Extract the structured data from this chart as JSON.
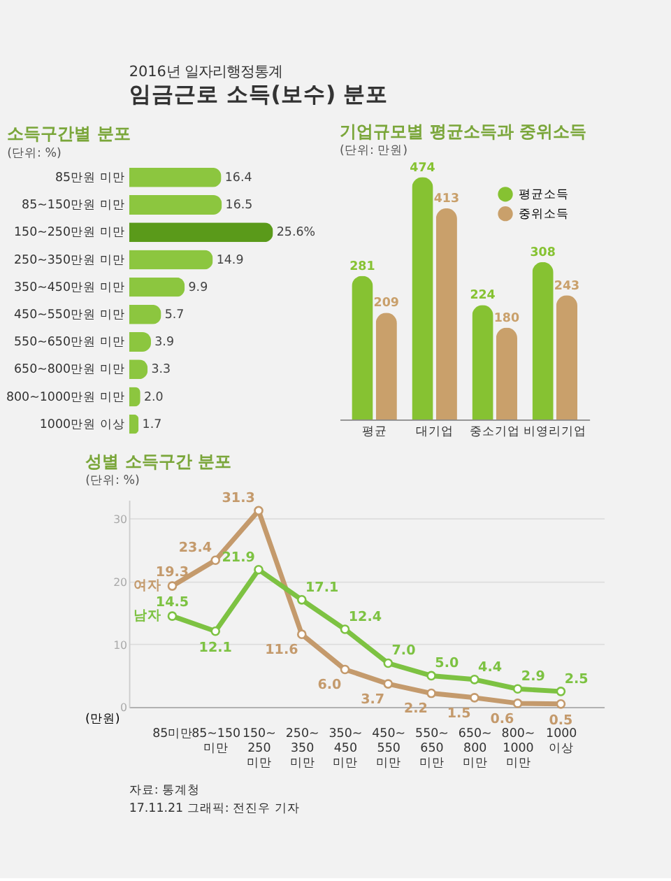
{
  "chart_data": [
    {
      "type": "bar",
      "orientation": "horizontal",
      "title": "소득구간별 분포",
      "subtitle": "(단위: %)",
      "annotations": [
        "2016년 일자리행정통계",
        "임금근로 소득(보수) 분포"
      ],
      "categories": [
        "85만원 미만",
        "85~150만원 미만",
        "150~250만원 미만",
        "250~350만원 미만",
        "350~450만원 미만",
        "450~550만원 미만",
        "550~650만원 미만",
        "650~800만원 미만",
        "800~1000만원 미만",
        "1000만원 이상"
      ],
      "values": [
        16.4,
        16.5,
        25.6,
        14.9,
        9.9,
        5.7,
        3.9,
        3.3,
        2.0,
        1.7
      ],
      "value_labels": [
        "16.4",
        "16.5",
        "25.6%",
        "14.9",
        "9.9",
        "5.7",
        "3.9",
        "3.3",
        "2.0",
        "1.7"
      ],
      "colors": [
        "#8cc63f",
        "#8cc63f",
        "#5a9a1a",
        "#8cc63f",
        "#8cc63f",
        "#8cc63f",
        "#8cc63f",
        "#8cc63f",
        "#8cc63f",
        "#8cc63f"
      ]
    },
    {
      "type": "bar",
      "title": "기업규모별 평균소득과 중위소득",
      "subtitle": "(단위: 만원)",
      "categories": [
        "평균",
        "대기업",
        "중소기업",
        "비영리기업"
      ],
      "data_labels": true,
      "legend": "top right",
      "series": [
        {
          "name": "평균소득",
          "color": "#86c232",
          "values": [
            281,
            474,
            224,
            308
          ]
        },
        {
          "name": "중위소득",
          "color": "#c9a06b",
          "values": [
            209,
            413,
            180,
            243
          ]
        }
      ]
    },
    {
      "type": "line",
      "title": "성별 소득구간 분포",
      "subtitle": "(단위: %)",
      "xlabel": "(만원)",
      "annotations": [
        "자료: 통계청",
        "17.11.21 그래픽: 전진우 기자"
      ],
      "categories": [
        "85미만",
        "85~150\n미만",
        "150~\n250\n미만",
        "250~\n350\n미만",
        "350~\n450\n미만",
        "450~\n550\n미만",
        "550~\n650\n미만",
        "650~\n800\n미만",
        "800~\n1000\n미만",
        "1000\n이상"
      ],
      "ylim": [
        0,
        33
      ],
      "yticks": [
        0,
        10,
        20,
        30
      ],
      "grid": "y",
      "marker": "circle",
      "data_labels": true,
      "legend": false,
      "line_style": "solid",
      "series": [
        {
          "name": "여자",
          "color": "#c49a6c",
          "values": [
            19.3,
            23.4,
            31.3,
            11.6,
            6.0,
            3.7,
            2.2,
            1.5,
            0.6,
            0.5
          ],
          "value_labels": [
            "19.3",
            "23.4",
            "31.3",
            "11.6",
            "6.0",
            "3.7",
            "2.2",
            "1.5",
            "0.6",
            "0.5"
          ]
        },
        {
          "name": "남자",
          "color": "#7dc242",
          "values": [
            14.5,
            12.1,
            21.9,
            17.1,
            12.4,
            7.0,
            5.0,
            4.4,
            2.9,
            2.5
          ],
          "value_labels": [
            "14.5",
            "12.1",
            "21.9",
            "17.1",
            "12.4",
            "7.0",
            "5.0",
            "4.4",
            "2.9",
            "2.5"
          ]
        }
      ]
    }
  ]
}
